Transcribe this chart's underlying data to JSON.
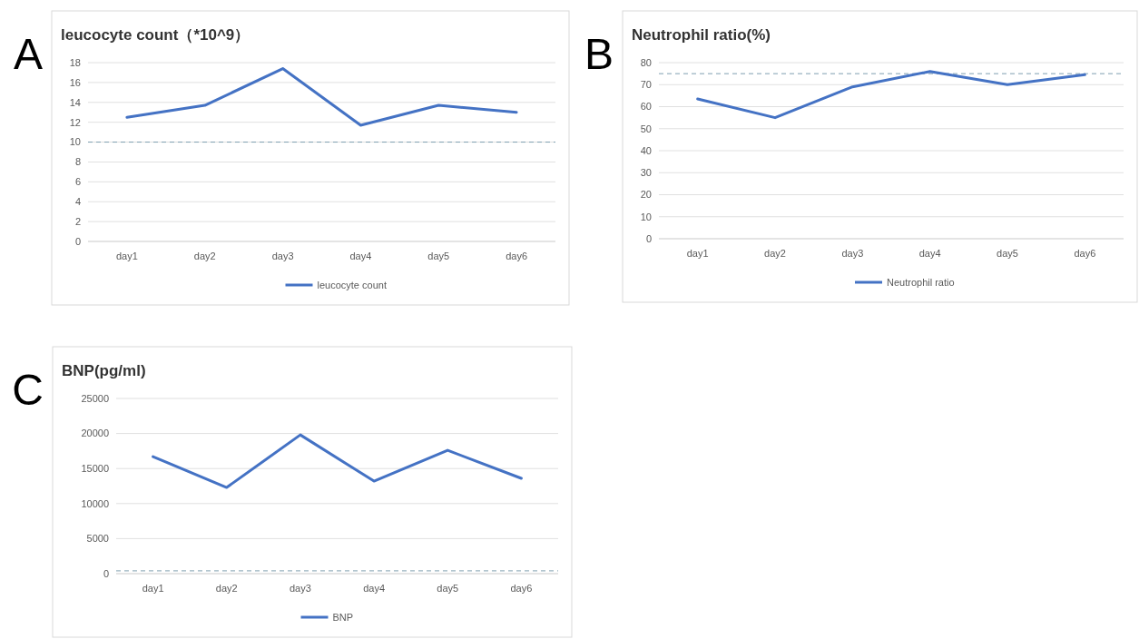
{
  "chart_data": [
    {
      "type": "line",
      "title": "leucocyte count（*10^9）",
      "categories": [
        "day1",
        "day2",
        "day3",
        "day4",
        "day5",
        "day6"
      ],
      "series": [
        {
          "name": "leucocyte count",
          "color": "#4472c4",
          "values": [
            12.5,
            13.7,
            17.4,
            11.7,
            13.7,
            13.0
          ]
        }
      ],
      "ylim": [
        0,
        18
      ],
      "yticks": [
        0,
        2,
        4,
        6,
        8,
        10,
        12,
        14,
        16,
        18
      ],
      "grid": "y",
      "legend": "bottom",
      "ref_lines": [
        {
          "axis": "y",
          "value": 10,
          "color": "#7f9fb0",
          "line_style": "dashed"
        }
      ],
      "annotations": [
        "A"
      ]
    },
    {
      "type": "line",
      "title": "Neutrophil ratio(%)",
      "categories": [
        "day1",
        "day2",
        "day3",
        "day4",
        "day5",
        "day6"
      ],
      "series": [
        {
          "name": "Neutrophil ratio",
          "color": "#4472c4",
          "values": [
            63.5,
            55,
            69,
            76,
            70,
            74.5
          ]
        }
      ],
      "ylim": [
        0,
        80
      ],
      "yticks": [
        0,
        10,
        20,
        30,
        40,
        50,
        60,
        70,
        80
      ],
      "grid": "y",
      "legend": "bottom",
      "ref_lines": [
        {
          "axis": "y",
          "value": 75,
          "color": "#7f9fb0",
          "line_style": "dashed"
        }
      ],
      "annotations": [
        "B"
      ]
    },
    {
      "type": "line",
      "title": "BNP(pg/ml)",
      "categories": [
        "day1",
        "day2",
        "day3",
        "day4",
        "day5",
        "day6"
      ],
      "series": [
        {
          "name": "BNP",
          "color": "#4472c4",
          "values": [
            16700,
            12300,
            19800,
            13200,
            17600,
            13600
          ]
        }
      ],
      "ylim": [
        0,
        25000
      ],
      "yticks": [
        0,
        5000,
        10000,
        15000,
        20000,
        25000
      ],
      "grid": "y",
      "legend": "bottom",
      "ref_lines": [
        {
          "axis": "y",
          "value": 400,
          "color": "#7f9fb0",
          "line_style": "dashed"
        }
      ],
      "annotations": [
        "C"
      ]
    }
  ]
}
